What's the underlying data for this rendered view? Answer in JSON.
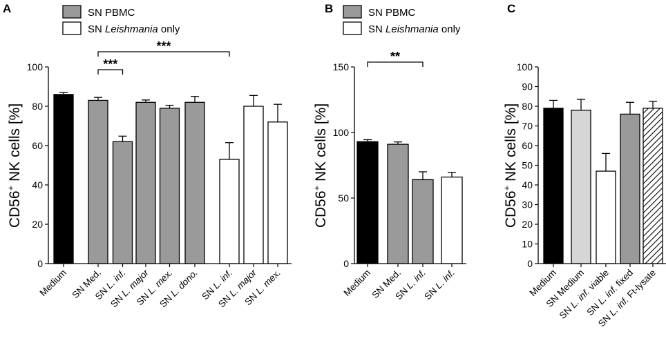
{
  "chart_data": [
    {
      "type": "bar",
      "panel": "A",
      "ylabel_main": "CD56",
      "ylabel_sup": "+",
      "ylabel_rest": " NK cells [%]",
      "ylim": [
        0,
        100
      ],
      "yticks": [
        0,
        20,
        40,
        60,
        80,
        100
      ],
      "legend": [
        {
          "label": "SN PBMC",
          "style": "gray"
        },
        {
          "label_plain": "SN ",
          "label_italic": "Leishmania",
          "label_tail": " only",
          "style": "white"
        }
      ],
      "bars": [
        {
          "label": "Medium",
          "value": 86,
          "error": 1.0,
          "style": "black"
        },
        {
          "label": "SN Med.",
          "value": 83,
          "error": 1.5,
          "style": "gray"
        },
        {
          "label_plain": "SN ",
          "label_italic": "L. inf.",
          "value": 62,
          "error": 2.8,
          "style": "gray"
        },
        {
          "label_plain": "SN ",
          "label_italic": "L. major",
          "value": 82,
          "error": 1.2,
          "style": "gray"
        },
        {
          "label_plain": "SN ",
          "label_italic": "L. mex.",
          "value": 79,
          "error": 1.5,
          "style": "gray"
        },
        {
          "label_plain": "SN ",
          "label_italic": "L. dono.",
          "value": 82,
          "error": 3.0,
          "style": "gray"
        },
        {
          "label_plain": "SN ",
          "label_italic": "L. inf.",
          "value": 53,
          "error": 8.5,
          "style": "white"
        },
        {
          "label_plain": "SN ",
          "label_italic": "L. major",
          "value": 80,
          "error": 5.5,
          "style": "white"
        },
        {
          "label_plain": "SN ",
          "label_italic": "L. mex.",
          "value": 72,
          "error": 9.0,
          "style": "white"
        }
      ],
      "significance": [
        {
          "from": 1,
          "to": 2,
          "label": "***"
        },
        {
          "from": 1,
          "to": 6,
          "label": "***"
        }
      ]
    },
    {
      "type": "bar",
      "panel": "B",
      "ylabel_main": "CD56",
      "ylabel_sup": "+",
      "ylabel_rest": " NK cells [%]",
      "ylim": [
        0,
        150
      ],
      "yticks": [
        0,
        50,
        100,
        150
      ],
      "legend": [
        {
          "label": "SN PBMC",
          "style": "gray"
        },
        {
          "label_plain": "SN ",
          "label_italic": "Leishmania",
          "label_tail": " only",
          "style": "white"
        }
      ],
      "bars": [
        {
          "label": "Medium",
          "value": 93,
          "error": 1.5,
          "style": "black"
        },
        {
          "label": "SN Med.",
          "value": 91,
          "error": 1.8,
          "style": "gray"
        },
        {
          "label_plain": "SN ",
          "label_italic": "L. inf.",
          "value": 64,
          "error": 6.0,
          "style": "gray"
        },
        {
          "label_plain": "SN ",
          "label_italic": "L. inf.",
          "value": 66,
          "error": 3.5,
          "style": "white"
        }
      ],
      "significance": [
        {
          "from": 0,
          "to": 2,
          "label": "**"
        }
      ]
    },
    {
      "type": "bar",
      "panel": "C",
      "ylabel_main": "CD56",
      "ylabel_sup": "+",
      "ylabel_rest": " NK cells [%]",
      "ylim": [
        0,
        100
      ],
      "yticks": [
        0,
        10,
        20,
        30,
        40,
        50,
        60,
        70,
        80,
        90,
        100
      ],
      "bars": [
        {
          "label": "Medium",
          "value": 79,
          "error": 4.0,
          "style": "black"
        },
        {
          "label": "SN Medium",
          "value": 78,
          "error": 5.5,
          "style": "lightgray"
        },
        {
          "label_plain": "SN ",
          "label_italic": "L. inf.",
          "label_tail": " viable",
          "value": 47,
          "error": 9.0,
          "style": "white"
        },
        {
          "label_plain": "SN ",
          "label_italic": "L. inf.",
          "label_tail": " fixed",
          "value": 76,
          "error": 6.0,
          "style": "gray"
        },
        {
          "label_plain": "SN ",
          "label_italic": "L. inf.",
          "label_tail": " Ft-lysate",
          "value": 79,
          "error": 3.5,
          "style": "hatched"
        }
      ],
      "significance": []
    }
  ],
  "colors": {
    "black": "#000000",
    "gray": "#9a9a9a",
    "lightgray": "#d6d6d6",
    "white": "#ffffff",
    "stroke": "#000000"
  }
}
